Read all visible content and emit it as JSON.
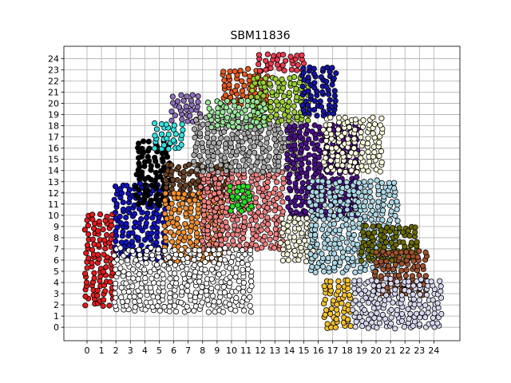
{
  "chart_data": {
    "type": "scatter",
    "title": "SBM11836",
    "xlabel": "",
    "ylabel": "",
    "xlim": [
      -1.6,
      25.8
    ],
    "ylim": [
      -1.2,
      25.1
    ],
    "xticks": [
      0,
      1,
      2,
      3,
      4,
      5,
      6,
      7,
      8,
      9,
      10,
      11,
      12,
      13,
      14,
      15,
      16,
      17,
      18,
      19,
      20,
      21,
      22,
      23,
      24
    ],
    "yticks": [
      0,
      1,
      2,
      3,
      4,
      5,
      6,
      7,
      8,
      9,
      10,
      11,
      12,
      13,
      14,
      15,
      16,
      17,
      18,
      19,
      20,
      21,
      22,
      23,
      24
    ],
    "grid": true,
    "legend": "none",
    "marker": {
      "shape": "circle",
      "edgecolor": "#000000"
    },
    "regions": [
      {
        "color": "#e41a1c",
        "xrange": [
          0.0,
          2.0
        ],
        "yrange": [
          2.0,
          10.0
        ]
      },
      {
        "color": "#1010c0",
        "xrange": [
          2.0,
          5.5
        ],
        "yrange": [
          6.0,
          13.0
        ]
      },
      {
        "color": "#000000",
        "xrange": [
          3.5,
          6.0
        ],
        "yrange": [
          11.0,
          16.5
        ]
      },
      {
        "color": "#33e0e0",
        "xrange": [
          4.8,
          6.8
        ],
        "yrange": [
          16.0,
          18.5
        ]
      },
      {
        "color": "#8e6fbf",
        "xrange": [
          6.0,
          8.0
        ],
        "yrange": [
          18.5,
          21.0
        ]
      },
      {
        "color": "#6b4226",
        "xrange": [
          5.5,
          10.0
        ],
        "yrange": [
          11.5,
          14.5
        ]
      },
      {
        "color": "#f28e2b",
        "xrange": [
          5.5,
          9.5
        ],
        "yrange": [
          6.0,
          12.0
        ]
      },
      {
        "color": "#f08080",
        "xrange": [
          8.0,
          13.5
        ],
        "yrange": [
          7.0,
          14.0
        ]
      },
      {
        "color": "#a9a9a9",
        "xrange": [
          7.5,
          15.0
        ],
        "yrange": [
          14.0,
          19.0
        ]
      },
      {
        "color": "#e8591c",
        "xrange": [
          9.5,
          12.5
        ],
        "yrange": [
          20.0,
          23.0
        ]
      },
      {
        "color": "#9acd32",
        "xrange": [
          11.5,
          15.5
        ],
        "yrange": [
          18.5,
          22.5
        ]
      },
      {
        "color": "#98e698",
        "xrange": [
          8.5,
          12.5
        ],
        "yrange": [
          18.0,
          20.5
        ]
      },
      {
        "color": "#ee3b4f",
        "xrange": [
          12.0,
          15.0
        ],
        "yrange": [
          23.0,
          24.5
        ]
      },
      {
        "color": "#1414a0",
        "xrange": [
          15.0,
          17.5
        ],
        "yrange": [
          19.0,
          23.5
        ]
      },
      {
        "color": "#4b0f8a",
        "xrange": [
          14.0,
          19.0
        ],
        "yrange": [
          10.0,
          18.0
        ]
      },
      {
        "color": "#fffde0",
        "xrange": [
          16.5,
          20.5
        ],
        "yrange": [
          14.0,
          19.0
        ]
      },
      {
        "color": "#24e024",
        "xrange": [
          10.0,
          11.5
        ],
        "yrange": [
          10.5,
          13.0
        ]
      },
      {
        "color": "#f5f5dc",
        "xrange": [
          13.5,
          16.0
        ],
        "yrange": [
          6.0,
          10.0
        ]
      },
      {
        "color": "#add8e6",
        "xrange": [
          15.5,
          21.5
        ],
        "yrange": [
          5.0,
          13.0
        ]
      },
      {
        "color": "#6b6b00",
        "xrange": [
          19.0,
          23.0
        ],
        "yrange": [
          6.0,
          9.0
        ]
      },
      {
        "color": "#a0522d",
        "xrange": [
          20.0,
          23.5
        ],
        "yrange": [
          3.0,
          7.0
        ]
      },
      {
        "color": "#f5c02a",
        "xrange": [
          16.5,
          18.5
        ],
        "yrange": [
          0.0,
          4.5
        ]
      },
      {
        "color": "#d8d8f0",
        "xrange": [
          18.5,
          24.5
        ],
        "yrange": [
          0.0,
          4.5
        ]
      },
      {
        "color": "#ffffff",
        "xrange": [
          2.0,
          11.5
        ],
        "yrange": [
          1.5,
          7.0
        ]
      }
    ]
  }
}
